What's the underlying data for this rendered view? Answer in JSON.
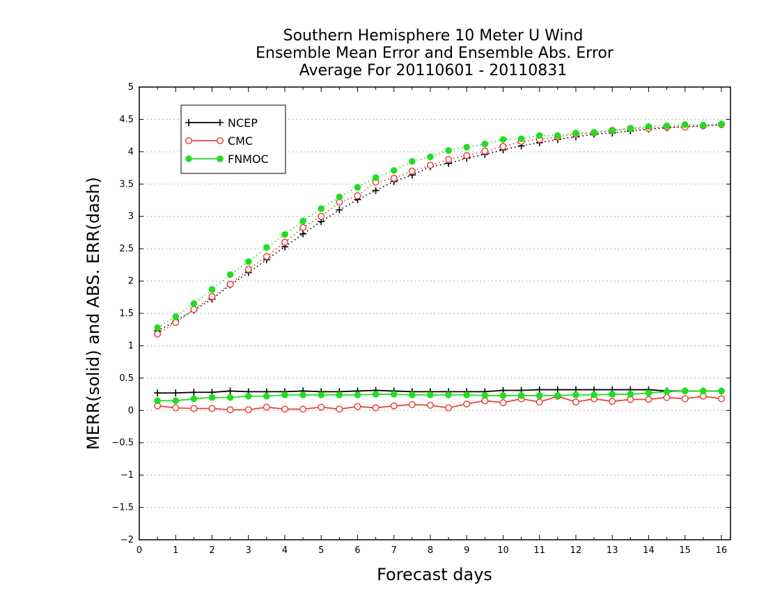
{
  "chart_data": {
    "type": "line",
    "title_lines": [
      "Southern Hemisphere 10 Meter U Wind",
      "Ensemble Mean Error and Ensemble Abs. Error",
      "Average For 20110601 - 20110831"
    ],
    "xlabel": "Forecast days",
    "ylabel": "MERR(solid) and ABS. ERR(dash)",
    "xlim": [
      0,
      16.25
    ],
    "ylim": [
      -2,
      5
    ],
    "x_ticks": [
      "0",
      "1",
      "2",
      "3",
      "4",
      "5",
      "6",
      "7",
      "8",
      "9",
      "10",
      "11",
      "12",
      "13",
      "14",
      "15",
      "16"
    ],
    "y_ticks": [
      "-2",
      "-1.5",
      "-1",
      "-0.5",
      "0",
      "0.5",
      "1",
      "1.5",
      "2",
      "2.5",
      "3",
      "3.5",
      "4",
      "4.5",
      "5"
    ],
    "grid": "horizontal dotted",
    "legend_placement": "top-left",
    "x": [
      0.5,
      1,
      1.5,
      2,
      2.5,
      3,
      3.5,
      4,
      4.5,
      5,
      5.5,
      6,
      6.5,
      7,
      7.5,
      8,
      8.5,
      9,
      9.5,
      10,
      10.5,
      11,
      11.5,
      12,
      12.5,
      13,
      13.5,
      14,
      14.5,
      15,
      15.5,
      16
    ],
    "series": [
      {
        "name": "NCEP",
        "color": "#000000",
        "marker": "plus",
        "mean_error": [
          0.27,
          0.27,
          0.28,
          0.28,
          0.3,
          0.29,
          0.29,
          0.29,
          0.3,
          0.29,
          0.29,
          0.3,
          0.31,
          0.3,
          0.29,
          0.29,
          0.29,
          0.29,
          0.29,
          0.31,
          0.31,
          0.32,
          0.32,
          0.32,
          0.32,
          0.32,
          0.32,
          0.32,
          0.3,
          0.3,
          0.3,
          0.3
        ],
        "abs_error": [
          1.23,
          1.38,
          1.55,
          1.72,
          1.94,
          2.13,
          2.33,
          2.53,
          2.73,
          2.92,
          3.1,
          3.26,
          3.4,
          3.54,
          3.64,
          3.77,
          3.82,
          3.9,
          3.96,
          4.03,
          4.09,
          4.14,
          4.19,
          4.23,
          4.27,
          4.29,
          4.32,
          4.35,
          4.37,
          4.39,
          4.4,
          4.42
        ]
      },
      {
        "name": "CMC",
        "color": "#e8443a",
        "marker": "open-circle",
        "mean_error": [
          0.07,
          0.04,
          0.03,
          0.03,
          0.01,
          0.01,
          0.05,
          0.02,
          0.02,
          0.05,
          0.02,
          0.06,
          0.04,
          0.07,
          0.09,
          0.08,
          0.04,
          0.1,
          0.15,
          0.12,
          0.18,
          0.13,
          0.22,
          0.13,
          0.18,
          0.14,
          0.17,
          0.17,
          0.2,
          0.18,
          0.22,
          0.18
        ],
        "abs_error": [
          1.18,
          1.36,
          1.56,
          1.76,
          1.95,
          2.18,
          2.38,
          2.6,
          2.83,
          3.0,
          3.22,
          3.32,
          3.53,
          3.59,
          3.7,
          3.79,
          3.88,
          3.94,
          4.01,
          4.08,
          4.16,
          4.19,
          4.23,
          4.27,
          4.29,
          4.33,
          4.36,
          4.36,
          4.38,
          4.38,
          4.4,
          4.42
        ]
      },
      {
        "name": "FNMOC",
        "color": "#22dd22",
        "marker": "filled-circle",
        "mean_error": [
          0.15,
          0.15,
          0.18,
          0.2,
          0.2,
          0.22,
          0.22,
          0.24,
          0.24,
          0.24,
          0.24,
          0.24,
          0.25,
          0.25,
          0.24,
          0.24,
          0.24,
          0.24,
          0.23,
          0.23,
          0.23,
          0.23,
          0.23,
          0.24,
          0.24,
          0.25,
          0.25,
          0.27,
          0.29,
          0.3,
          0.3,
          0.3
        ],
        "abs_error": [
          1.28,
          1.45,
          1.65,
          1.87,
          2.1,
          2.3,
          2.52,
          2.72,
          2.93,
          3.12,
          3.3,
          3.45,
          3.6,
          3.71,
          3.85,
          3.92,
          4.02,
          4.07,
          4.12,
          4.19,
          4.2,
          4.25,
          4.25,
          4.29,
          4.3,
          4.33,
          4.36,
          4.39,
          4.4,
          4.42,
          4.41,
          4.43
        ]
      }
    ]
  }
}
